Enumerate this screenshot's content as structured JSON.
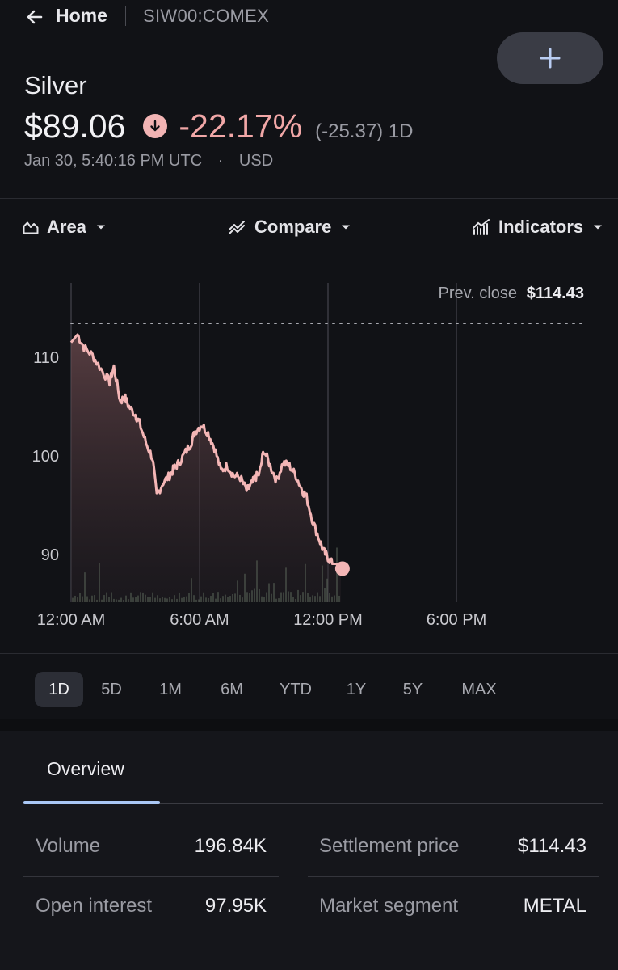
{
  "nav": {
    "home_label": "Home",
    "ticker": "SIW00:COMEX"
  },
  "quote": {
    "name": "Silver",
    "price": "$89.06",
    "change_pct": "-22.17%",
    "change_abs": "(-25.37) 1D",
    "timestamp": "Jan 30, 5:40:16 PM UTC",
    "separator": "·",
    "currency": "USD"
  },
  "controls": {
    "area_label": "Area",
    "compare_label": "Compare",
    "indicators_label": "Indicators"
  },
  "chart_data": {
    "type": "area",
    "prev_close_label": "Prev. close",
    "prev_close_value": "$114.43",
    "prev_close": 114.43,
    "ylim": [
      85,
      115
    ],
    "yticks": [
      {
        "label": "110",
        "value": 110
      },
      {
        "label": "100",
        "value": 100
      },
      {
        "label": "90",
        "value": 90
      }
    ],
    "xticks": [
      "12:00 AM",
      "6:00 AM",
      "12:00 PM",
      "6:00 PM"
    ],
    "x_hours": [
      0,
      6,
      12,
      18
    ],
    "series": [
      {
        "x": [
          0,
          0.3,
          0.6,
          1.0,
          1.4,
          1.8,
          2.0,
          2.3,
          2.5,
          2.7,
          3.0,
          3.2,
          3.5,
          3.8,
          4.0,
          4.3,
          4.6,
          4.8,
          5.0,
          5.3,
          5.6,
          5.8,
          6.1,
          6.4,
          6.7,
          7.0,
          7.3,
          7.6,
          7.9,
          8.2,
          8.4,
          8.6,
          8.8,
          9.0,
          9.3,
          9.6,
          9.9,
          10.2,
          10.5,
          10.8,
          11.0,
          11.3,
          11.6,
          11.8,
          12.0,
          12.2,
          12.6
        ],
        "y": [
          111.5,
          112.3,
          111.0,
          110.2,
          108.8,
          107.5,
          109.0,
          105.5,
          106.0,
          105.0,
          104.2,
          103.3,
          101.3,
          99.8,
          96.0,
          97.3,
          98.0,
          98.7,
          99.2,
          100.2,
          101.3,
          102.5,
          103.2,
          102.3,
          100.8,
          98.5,
          99.0,
          98.0,
          97.8,
          96.5,
          97.0,
          97.8,
          98.2,
          100.6,
          99.0,
          97.5,
          99.3,
          99.0,
          98.0,
          96.5,
          95.8,
          93.3,
          91.5,
          90.3,
          89.7,
          89.06,
          89.06
        ]
      }
    ],
    "grid": true
  },
  "ranges": [
    {
      "label": "1D",
      "active": true
    },
    {
      "label": "5D",
      "active": false
    },
    {
      "label": "1M",
      "active": false
    },
    {
      "label": "6M",
      "active": false
    },
    {
      "label": "YTD",
      "active": false
    },
    {
      "label": "1Y",
      "active": false
    },
    {
      "label": "5Y",
      "active": false
    },
    {
      "label": "MAX",
      "active": false
    }
  ],
  "overview": {
    "tab_label": "Overview",
    "volume_label": "Volume",
    "volume_value": "196.84K",
    "open_interest_label": "Open interest",
    "open_interest_value": "97.95K",
    "settlement_label": "Settlement price",
    "settlement_value": "$114.43",
    "segment_label": "Market segment",
    "segment_value": "METAL"
  },
  "colors": {
    "negative": "#f1a7a7",
    "accent_tab": "#a9c7f5",
    "line": "#f4b6b6"
  }
}
